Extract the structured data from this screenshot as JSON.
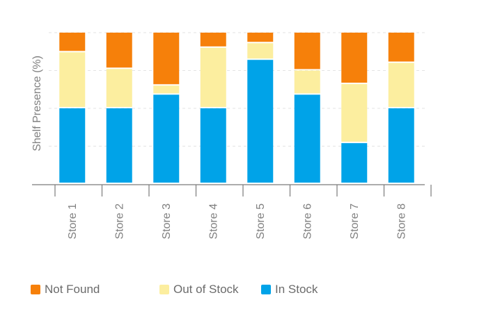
{
  "chart_data": {
    "type": "bar",
    "stacked": true,
    "orientation": "vertical",
    "ylabel": "Shelf Presence (%)",
    "xlabel": "",
    "ylim": [
      0,
      100
    ],
    "y_tick_labels_visible": false,
    "grid": true,
    "legend_position": "bottom",
    "categories": [
      "Store 1",
      "Store 2",
      "Store 3",
      "Store 4",
      "Store 5",
      "Store 6",
      "Store 7",
      "Store 8"
    ],
    "series": [
      {
        "name": "In Stock",
        "color": "#00a3e8",
        "values": [
          50,
          50,
          59,
          50,
          82,
          59,
          27,
          50
        ]
      },
      {
        "name": "Out of Stock",
        "color": "#fcee9f",
        "values": [
          37,
          26,
          6,
          40,
          11,
          16,
          39,
          30
        ]
      },
      {
        "name": "Not Found",
        "color": "#f6800a",
        "values": [
          13,
          24,
          35,
          10,
          7,
          25,
          34,
          20
        ]
      }
    ]
  },
  "legend": {
    "items": [
      {
        "label": "Not Found",
        "color": "#f6800a"
      },
      {
        "label": "Out of Stock",
        "color": "#fcee9f"
      },
      {
        "label": "In Stock",
        "color": "#00a3e8"
      }
    ]
  }
}
